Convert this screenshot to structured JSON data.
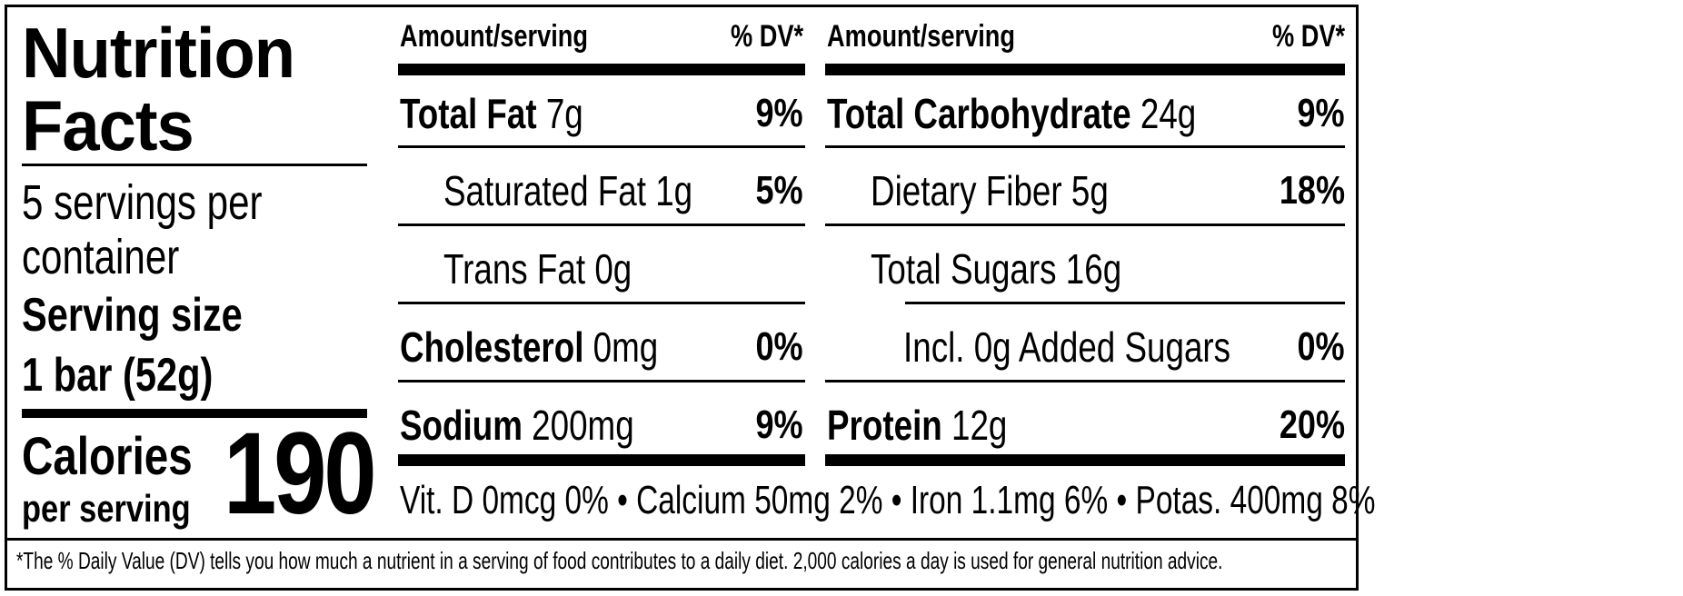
{
  "title": {
    "line1": "Nutrition",
    "line2": "Facts"
  },
  "servings": {
    "line1": "5 servings per",
    "line2": "container"
  },
  "serving_size": {
    "label": "Serving size",
    "value": "1 bar (52g)"
  },
  "calories": {
    "label": "Calories",
    "sublabel": "per serving",
    "value": "190"
  },
  "header": {
    "amount": "Amount/serving",
    "dv": "% DV*"
  },
  "left_rows": [
    {
      "name": "Total Fat",
      "amount": "7g",
      "dv": "9%"
    },
    {
      "name": "Saturated Fat",
      "amount": "1g",
      "dv": "5%"
    },
    {
      "name": "Trans Fat",
      "amount": "0g",
      "dv": ""
    },
    {
      "name": "Cholesterol",
      "amount": "0mg",
      "dv": "0%"
    },
    {
      "name": "Sodium",
      "amount": "200mg",
      "dv": "9%"
    }
  ],
  "right_rows": [
    {
      "name": "Total Carbohydrate",
      "amount": "24g",
      "dv": "9%"
    },
    {
      "name": "Dietary Fiber",
      "amount": "5g",
      "dv": "18%"
    },
    {
      "name": "Total Sugars",
      "amount": "16g",
      "dv": ""
    },
    {
      "name": "Incl. 0g Added Sugars",
      "amount": "",
      "dv": "0%"
    },
    {
      "name": "Protein",
      "amount": "12g",
      "dv": "20%"
    }
  ],
  "vitamins": "Vit. D 0mcg 0% • Calcium 50mg 2% • Iron 1.1mg 6% • Potas. 400mg 8%",
  "footnote": "*The % Daily Value (DV) tells you how much a nutrient in a serving of food contributes to a daily diet. 2,000 calories a day is used for general nutrition advice."
}
